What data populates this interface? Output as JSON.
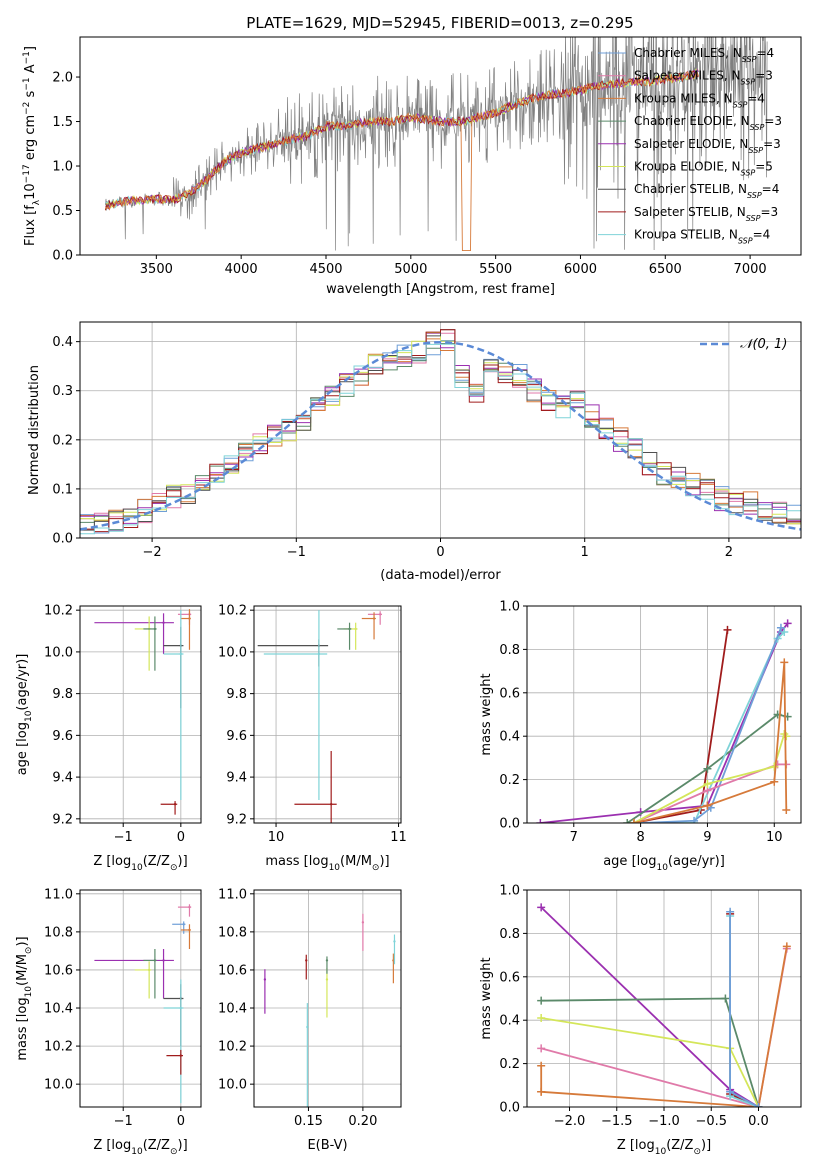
{
  "figure": {
    "title": "PLATE=1629, MJD=52945, FIBERID=0013, z=0.295"
  },
  "colors": {
    "gray": "#808080",
    "chabrier_miles": "#6f9fd8",
    "salpeter_miles": "#e07aa9",
    "kroupa_miles": "#d67a3a",
    "chabrier_elodie": "#5b8a6a",
    "salpeter_elodie": "#9b30b0",
    "kroupa_elodie": "#d4e65a",
    "chabrier_stelib": "#505050",
    "salpeter_stelib": "#a01c1c",
    "kroupa_stelib": "#7fd3d8",
    "normal": "#5b8ad6"
  },
  "legend": {
    "entries": [
      {
        "text": "Chabrier MILES, N",
        "sub": "SSP",
        "val": "=4",
        "color": "#6f9fd8"
      },
      {
        "text": "Salpeter MILES, N",
        "sub": "SSP",
        "val": "=3",
        "color": "#e07aa9"
      },
      {
        "text": "Kroupa MILES, N",
        "sub": "SSP",
        "val": "=4",
        "color": "#d67a3a"
      },
      {
        "text": "Chabrier ELODIE, N",
        "sub": "SSP",
        "val": "=3",
        "color": "#5b8a6a"
      },
      {
        "text": "Salpeter ELODIE, N",
        "sub": "SSP",
        "val": "=3",
        "color": "#9b30b0"
      },
      {
        "text": "Kroupa ELODIE, N",
        "sub": "SSP",
        "val": "=5",
        "color": "#d4e65a"
      },
      {
        "text": "Chabrier STELIB, N",
        "sub": "SSP",
        "val": "=4",
        "color": "#505050"
      },
      {
        "text": "Salpeter STELIB, N",
        "sub": "SSP",
        "val": "=3",
        "color": "#a01c1c"
      },
      {
        "text": "Kroupa STELIB, N",
        "sub": "SSP",
        "val": "=4",
        "color": "#7fd3d8"
      }
    ],
    "normal_label": "𝒩(0, 1)"
  },
  "chart_data": [
    {
      "id": "spectrum",
      "type": "line",
      "xlabel": "wavelength [Angstrom, rest frame]",
      "ylabel": "Flux [f",
      "ylabel_sub": "λ",
      "ylabel_rest": "10",
      "ylabel_exp": "−17",
      "ylabel_units": " erg cm",
      "ylabel_units2": " s",
      "ylabel_units3": " A",
      "xlim": [
        3050,
        7300
      ],
      "ylim": [
        0,
        2.45
      ],
      "xticks": [
        "3500",
        "4000",
        "4500",
        "5000",
        "5500",
        "6000",
        "6500",
        "7000"
      ],
      "yticks": [
        "0.0",
        "0.5",
        "1.0",
        "1.5",
        "2.0"
      ],
      "continuum": {
        "x": [
          3200,
          3300,
          3400,
          3500,
          3600,
          3700,
          3800,
          3900,
          4000,
          4100,
          4200,
          4300,
          4400,
          4500,
          4600,
          4700,
          4800,
          4900,
          5000,
          5100,
          5200,
          5300,
          5400,
          5500,
          5600,
          5700,
          5800,
          5900,
          6000,
          6100,
          6200,
          6300,
          6400,
          6500,
          6600,
          6700,
          6800,
          6900,
          7000,
          7100
        ],
        "y": [
          0.55,
          0.6,
          0.62,
          0.63,
          0.62,
          0.7,
          0.85,
          1.05,
          1.15,
          1.2,
          1.25,
          1.3,
          1.35,
          1.45,
          1.45,
          1.48,
          1.5,
          1.5,
          1.55,
          1.52,
          1.5,
          1.5,
          1.55,
          1.6,
          1.68,
          1.75,
          1.8,
          1.82,
          1.85,
          1.9,
          1.92,
          1.95,
          1.95,
          1.98,
          2.0,
          2.05,
          2.05,
          2.1,
          2.1,
          2.1
        ]
      }
    },
    {
      "id": "residuals",
      "type": "step",
      "xlabel": "(data-model)/error",
      "ylabel": "Normed distribution",
      "xlim": [
        -2.5,
        2.5
      ],
      "ylim": [
        0,
        0.44
      ],
      "xticks": [
        "−2",
        "−1",
        "0",
        "1",
        "2"
      ],
      "yticks": [
        "0.0",
        "0.1",
        "0.2",
        "0.3",
        "0.4"
      ],
      "bin_edges": [
        -2.5,
        -2.4,
        -2.3,
        -2.2,
        -2.1,
        -2.0,
        -1.9,
        -1.8,
        -1.7,
        -1.6,
        -1.5,
        -1.4,
        -1.3,
        -1.2,
        -1.1,
        -1.0,
        -0.9,
        -0.8,
        -0.7,
        -0.6,
        -0.5,
        -0.4,
        -0.3,
        -0.2,
        -0.1,
        0.0,
        0.1,
        0.2,
        0.3,
        0.4,
        0.5,
        0.6,
        0.7,
        0.8,
        0.9,
        1.0,
        1.1,
        1.2,
        1.3,
        1.4,
        1.5,
        1.6,
        1.7,
        1.8,
        1.9,
        2.0,
        2.1,
        2.2,
        2.3,
        2.4,
        2.5
      ],
      "heights": [
        0.03,
        0.03,
        0.035,
        0.045,
        0.055,
        0.07,
        0.085,
        0.09,
        0.11,
        0.13,
        0.15,
        0.17,
        0.19,
        0.21,
        0.22,
        0.24,
        0.27,
        0.29,
        0.31,
        0.33,
        0.35,
        0.36,
        0.37,
        0.38,
        0.395,
        0.4,
        0.33,
        0.3,
        0.35,
        0.34,
        0.33,
        0.3,
        0.28,
        0.27,
        0.29,
        0.25,
        0.22,
        0.2,
        0.18,
        0.15,
        0.13,
        0.12,
        0.11,
        0.1,
        0.08,
        0.07,
        0.07,
        0.06,
        0.05,
        0.045
      ]
    },
    {
      "id": "age_vs_Z",
      "type": "scatter",
      "xlabel": "Z [log",
      "xlabel_rest": "(Z/Z",
      "ylabel": "age  [log",
      "ylabel_rest": "(age/yr)]",
      "xlim": [
        -1.75,
        0.35
      ],
      "ylim": [
        9.18,
        10.22
      ],
      "xticks": [
        "−1",
        "0"
      ],
      "yticks": [
        "9.2",
        "9.4",
        "9.6",
        "9.8",
        "10.0",
        "10.2"
      ],
      "points": [
        {
          "x": -0.3,
          "y": 10.14,
          "xerr": 1.2,
          "yerr": 0.15,
          "c": "#9b30b0"
        },
        {
          "x": -0.55,
          "y": 10.11,
          "xerr": 0.25,
          "yerr": 0.2,
          "c": "#d4e65a"
        },
        {
          "x": -0.45,
          "y": 10.11,
          "xerr": 0.2,
          "yerr": 0.2,
          "c": "#5b8a6a"
        },
        {
          "x": 0.15,
          "y": 10.18,
          "xerr": 0.2,
          "yerr": 0.05,
          "c": "#e07aa9"
        },
        {
          "x": 0.15,
          "y": 10.16,
          "xerr": 0.15,
          "yerr": 0.15,
          "c": "#d67a3a"
        },
        {
          "x": 0.0,
          "y": 10.03,
          "xerr": 0.3,
          "yerr": 0.3,
          "c": "#505050"
        },
        {
          "x": 0.0,
          "y": 9.99,
          "xerr": 0.3,
          "yerr": 0.7,
          "c": "#7fd3d8"
        },
        {
          "x": -0.1,
          "y": 9.27,
          "xerr": 0.25,
          "yerr": 0.05,
          "c": "#a01c1c"
        }
      ]
    },
    {
      "id": "age_vs_mass",
      "type": "scatter",
      "xlabel": "mass [log",
      "xlabel_rest": "(M/M",
      "xlim": [
        9.82,
        11.02
      ],
      "ylim": [
        9.18,
        10.22
      ],
      "xticks": [
        "10",
        "11"
      ],
      "yticks": [
        "9.2",
        "9.4",
        "9.6",
        "9.8",
        "10.0",
        "10.2"
      ],
      "points": [
        {
          "x": 10.35,
          "y": 10.03,
          "xerr": 0.5,
          "yerr": 0.1,
          "c": "#505050"
        },
        {
          "x": 10.35,
          "y": 9.99,
          "xerr": 0.45,
          "yerr": 0.7,
          "c": "#7fd3d8"
        },
        {
          "x": 10.65,
          "y": 10.11,
          "xerr": 0.1,
          "yerr": 0.1,
          "c": "#d4e65a"
        },
        {
          "x": 10.6,
          "y": 10.11,
          "xerr": 0.1,
          "yerr": 0.1,
          "c": "#5b8a6a"
        },
        {
          "x": 10.85,
          "y": 10.18,
          "xerr": 0.1,
          "yerr": 0.05,
          "c": "#e07aa9"
        },
        {
          "x": 10.8,
          "y": 10.16,
          "xerr": 0.1,
          "yerr": 0.1,
          "c": "#d67a3a"
        },
        {
          "x": 10.45,
          "y": 9.27,
          "xerr": 0.3,
          "yerr": 0.85,
          "c": "#a01c1c"
        }
      ]
    },
    {
      "id": "mass_weight_vs_age",
      "type": "line",
      "xlabel": "age  [log",
      "xlabel_rest": "(age/yr)]",
      "ylabel": "mass weight",
      "xlim": [
        6.3,
        10.4
      ],
      "ylim": [
        0,
        1
      ],
      "xticks": [
        "7",
        "8",
        "9",
        "10"
      ],
      "yticks": [
        "0.0",
        "0.2",
        "0.4",
        "0.6",
        "0.8",
        "1.0"
      ],
      "series": [
        {
          "c": "#a01c1c",
          "x": [
            7.9,
            8.9,
            9.3
          ],
          "y": [
            0.0,
            0.06,
            0.89
          ]
        },
        {
          "c": "#9b30b0",
          "x": [
            6.5,
            8.0,
            9.0,
            10.1,
            10.2
          ],
          "y": [
            0.0,
            0.05,
            0.08,
            0.88,
            0.92
          ]
        },
        {
          "c": "#5b8a6a",
          "x": [
            7.8,
            9.0,
            10.05,
            10.2
          ],
          "y": [
            0.0,
            0.25,
            0.5,
            0.49
          ]
        },
        {
          "c": "#7fd3d8",
          "x": [
            8.0,
            8.8,
            10.05,
            10.15
          ],
          "y": [
            0.0,
            0.0,
            0.85,
            0.88
          ]
        },
        {
          "c": "#6f9fd8",
          "x": [
            8.0,
            8.8,
            9.05,
            10.1
          ],
          "y": [
            0.0,
            0.01,
            0.07,
            0.9
          ]
        },
        {
          "c": "#e07aa9",
          "x": [
            7.9,
            9.0,
            10.05,
            10.18
          ],
          "y": [
            0.0,
            0.15,
            0.27,
            0.27
          ]
        },
        {
          "c": "#d4e65a",
          "x": [
            7.9,
            9.0,
            10.0,
            10.15,
            10.18
          ],
          "y": [
            0.0,
            0.18,
            0.26,
            0.41,
            0.4
          ]
        },
        {
          "c": "#d67a3a",
          "x": [
            7.9,
            9.0,
            10.0,
            10.15,
            10.18
          ],
          "y": [
            0.0,
            0.08,
            0.19,
            0.74,
            0.06
          ]
        }
      ]
    },
    {
      "id": "mass_vs_Z",
      "type": "scatter",
      "xlabel": "Z [log",
      "xlabel_rest": "(Z/Z",
      "ylabel": "mass [log",
      "ylabel_rest": "(M/M",
      "xlim": [
        -1.75,
        0.35
      ],
      "ylim": [
        9.88,
        11.02
      ],
      "xticks": [
        "−1",
        "0"
      ],
      "yticks": [
        "10.0",
        "10.2",
        "10.4",
        "10.6",
        "10.8",
        "11.0"
      ],
      "points": [
        {
          "x": -0.3,
          "y": 10.65,
          "xerr": 1.2,
          "yerr": 0.2,
          "c": "#9b30b0"
        },
        {
          "x": -0.55,
          "y": 10.6,
          "xerr": 0.25,
          "yerr": 0.15,
          "c": "#d4e65a"
        },
        {
          "x": -0.45,
          "y": 10.65,
          "xerr": 0.2,
          "yerr": 0.2,
          "c": "#5b8a6a"
        },
        {
          "x": 0.15,
          "y": 10.93,
          "xerr": 0.2,
          "yerr": 0.05,
          "c": "#e07aa9"
        },
        {
          "x": 0.05,
          "y": 10.84,
          "xerr": 0.2,
          "yerr": 0.05,
          "c": "#6f9fd8"
        },
        {
          "x": 0.15,
          "y": 10.81,
          "xerr": 0.15,
          "yerr": 0.1,
          "c": "#d67a3a"
        },
        {
          "x": 0.0,
          "y": 10.45,
          "xerr": 0.3,
          "yerr": 0.25,
          "c": "#505050"
        },
        {
          "x": 0.0,
          "y": 10.4,
          "xerr": 0.3,
          "yerr": 0.5,
          "c": "#7fd3d8"
        },
        {
          "x": 0.0,
          "y": 10.15,
          "xerr": 0.25,
          "yerr": 0.1,
          "c": "#a01c1c"
        }
      ]
    },
    {
      "id": "mass_vs_ebv",
      "type": "scatter",
      "xlabel": "E(B-V)",
      "xlim": [
        0.1,
        0.235
      ],
      "ylim": [
        9.88,
        11.02
      ],
      "xticks": [
        "0.15",
        "0.20"
      ],
      "yticks": [
        "10.0",
        "10.2",
        "10.4",
        "10.6",
        "10.8",
        "11.0"
      ],
      "points": [
        {
          "x": 0.11,
          "y": 10.55,
          "yerr": 0.18,
          "c": "#9b30b0"
        },
        {
          "x": 0.148,
          "y": 10.65,
          "yerr": 0.1,
          "c": "#a01c1c"
        },
        {
          "x": 0.149,
          "y": 10.3,
          "yerr": 0.42,
          "c": "#7fd3d8"
        },
        {
          "x": 0.167,
          "y": 10.55,
          "yerr": 0.2,
          "c": "#d4e65a"
        },
        {
          "x": 0.167,
          "y": 10.65,
          "yerr": 0.07,
          "c": "#5b8a6a"
        },
        {
          "x": 0.2,
          "y": 10.85,
          "yerr": 0.15,
          "c": "#e07aa9"
        },
        {
          "x": 0.228,
          "y": 10.65,
          "yerr": 0.12,
          "c": "#d67a3a"
        },
        {
          "x": 0.229,
          "y": 10.75,
          "yerr": 0.12,
          "c": "#7fd3d8"
        }
      ]
    },
    {
      "id": "mass_weight_vs_Z",
      "type": "line",
      "xlabel": "Z [log",
      "xlabel_rest": "(Z/Z",
      "ylabel": "mass weight",
      "xlim": [
        -2.45,
        0.45
      ],
      "ylim": [
        0,
        1
      ],
      "xticks": [
        "−2.0",
        "−1.5",
        "−1.0",
        "−0.5",
        "0.0"
      ],
      "yticks": [
        "0.0",
        "0.2",
        "0.4",
        "0.6",
        "0.8",
        "1.0"
      ],
      "series": [
        {
          "c": "#9b30b0",
          "x": [
            -2.3,
            -0.3,
            0.0
          ],
          "y": [
            0.92,
            0.08,
            0.0
          ]
        },
        {
          "c": "#5b8a6a",
          "x": [
            -2.3,
            -0.35,
            0.0
          ],
          "y": [
            0.49,
            0.5,
            0.0
          ]
        },
        {
          "c": "#d4e65a",
          "x": [
            -2.3,
            -0.3,
            0.0
          ],
          "y": [
            0.41,
            0.27,
            0.0
          ]
        },
        {
          "c": "#e07aa9",
          "x": [
            -2.3,
            0.0,
            0.3
          ],
          "y": [
            0.27,
            0.0,
            0.73
          ]
        },
        {
          "c": "#d67a3a",
          "x": [
            -2.3,
            0.0,
            0.3
          ],
          "y": [
            0.07,
            0.0,
            0.74
          ]
        },
        {
          "c": "#d67a3a",
          "x": [
            -2.3,
            -2.3
          ],
          "y": [
            0.19,
            0.07
          ]
        },
        {
          "c": "#a01c1c",
          "x": [
            -0.3,
            -0.3,
            0.0
          ],
          "y": [
            0.89,
            0.06,
            0.0
          ]
        },
        {
          "c": "#7fd3d8",
          "x": [
            -0.3,
            -0.3,
            0.0
          ],
          "y": [
            0.88,
            0.05,
            0.0
          ]
        },
        {
          "c": "#6f9fd8",
          "x": [
            -0.3,
            -0.3,
            0.0
          ],
          "y": [
            0.9,
            0.07,
            0.0
          ]
        }
      ]
    }
  ]
}
